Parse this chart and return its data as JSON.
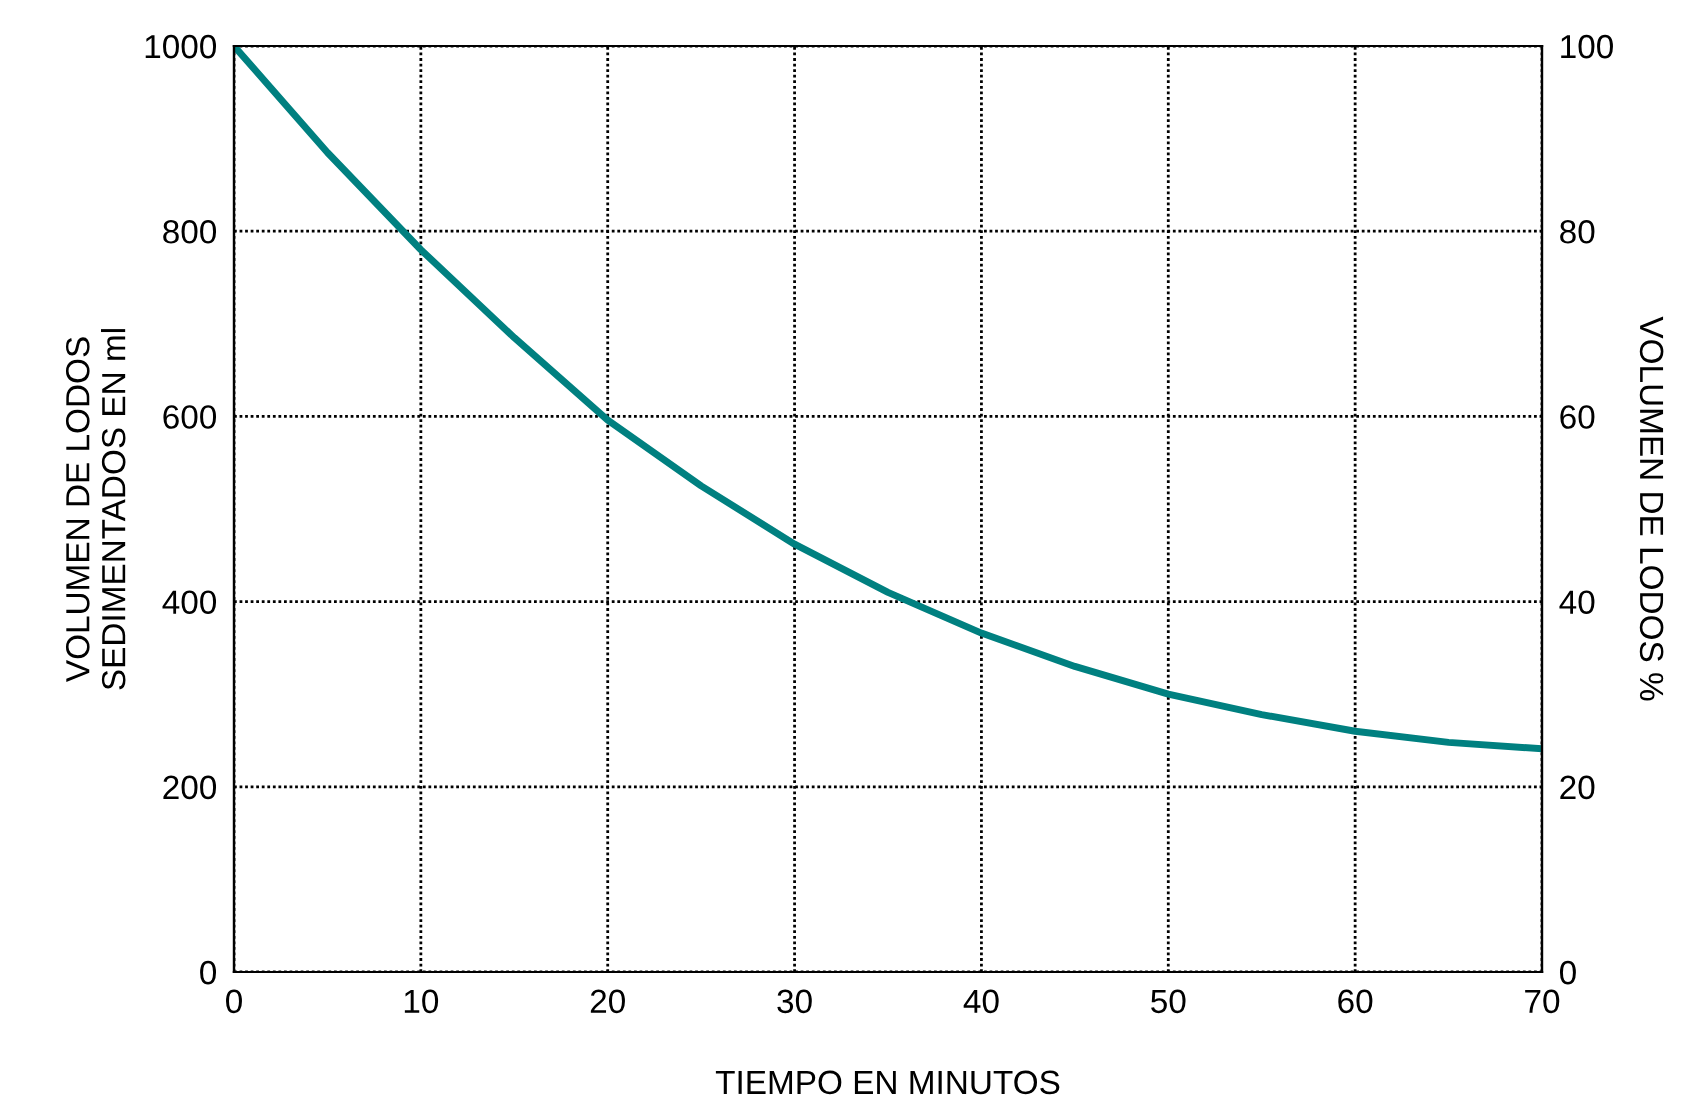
{
  "chart_data": {
    "type": "line",
    "xlabel": "TIEMPO EN MINUTOS",
    "ylabel": "VOLUMEN DE LODOS\nSEDIMENTADOS EN ml",
    "y2label": "VOLUMEN DE LODOS %",
    "x": [
      0,
      5,
      10,
      15,
      20,
      25,
      30,
      35,
      40,
      45,
      50,
      55,
      60,
      65,
      70
    ],
    "series": [
      {
        "color": "#008080",
        "values": [
          1000,
          885,
          780,
          685,
          596,
          525,
          462,
          410,
          366,
          330,
          300,
          278,
          260,
          248,
          241
        ]
      }
    ],
    "xlim": [
      0,
      70
    ],
    "xticks": [
      0,
      10,
      20,
      30,
      40,
      50,
      60,
      70
    ],
    "ylim": [
      0,
      1000
    ],
    "yticks": [
      0,
      200,
      400,
      600,
      800,
      1000
    ],
    "y2lim": [
      0,
      100
    ],
    "y2ticks": [
      0,
      20,
      40,
      60,
      80,
      100
    ],
    "grid": true,
    "line_style": "solid",
    "marker": "none"
  }
}
